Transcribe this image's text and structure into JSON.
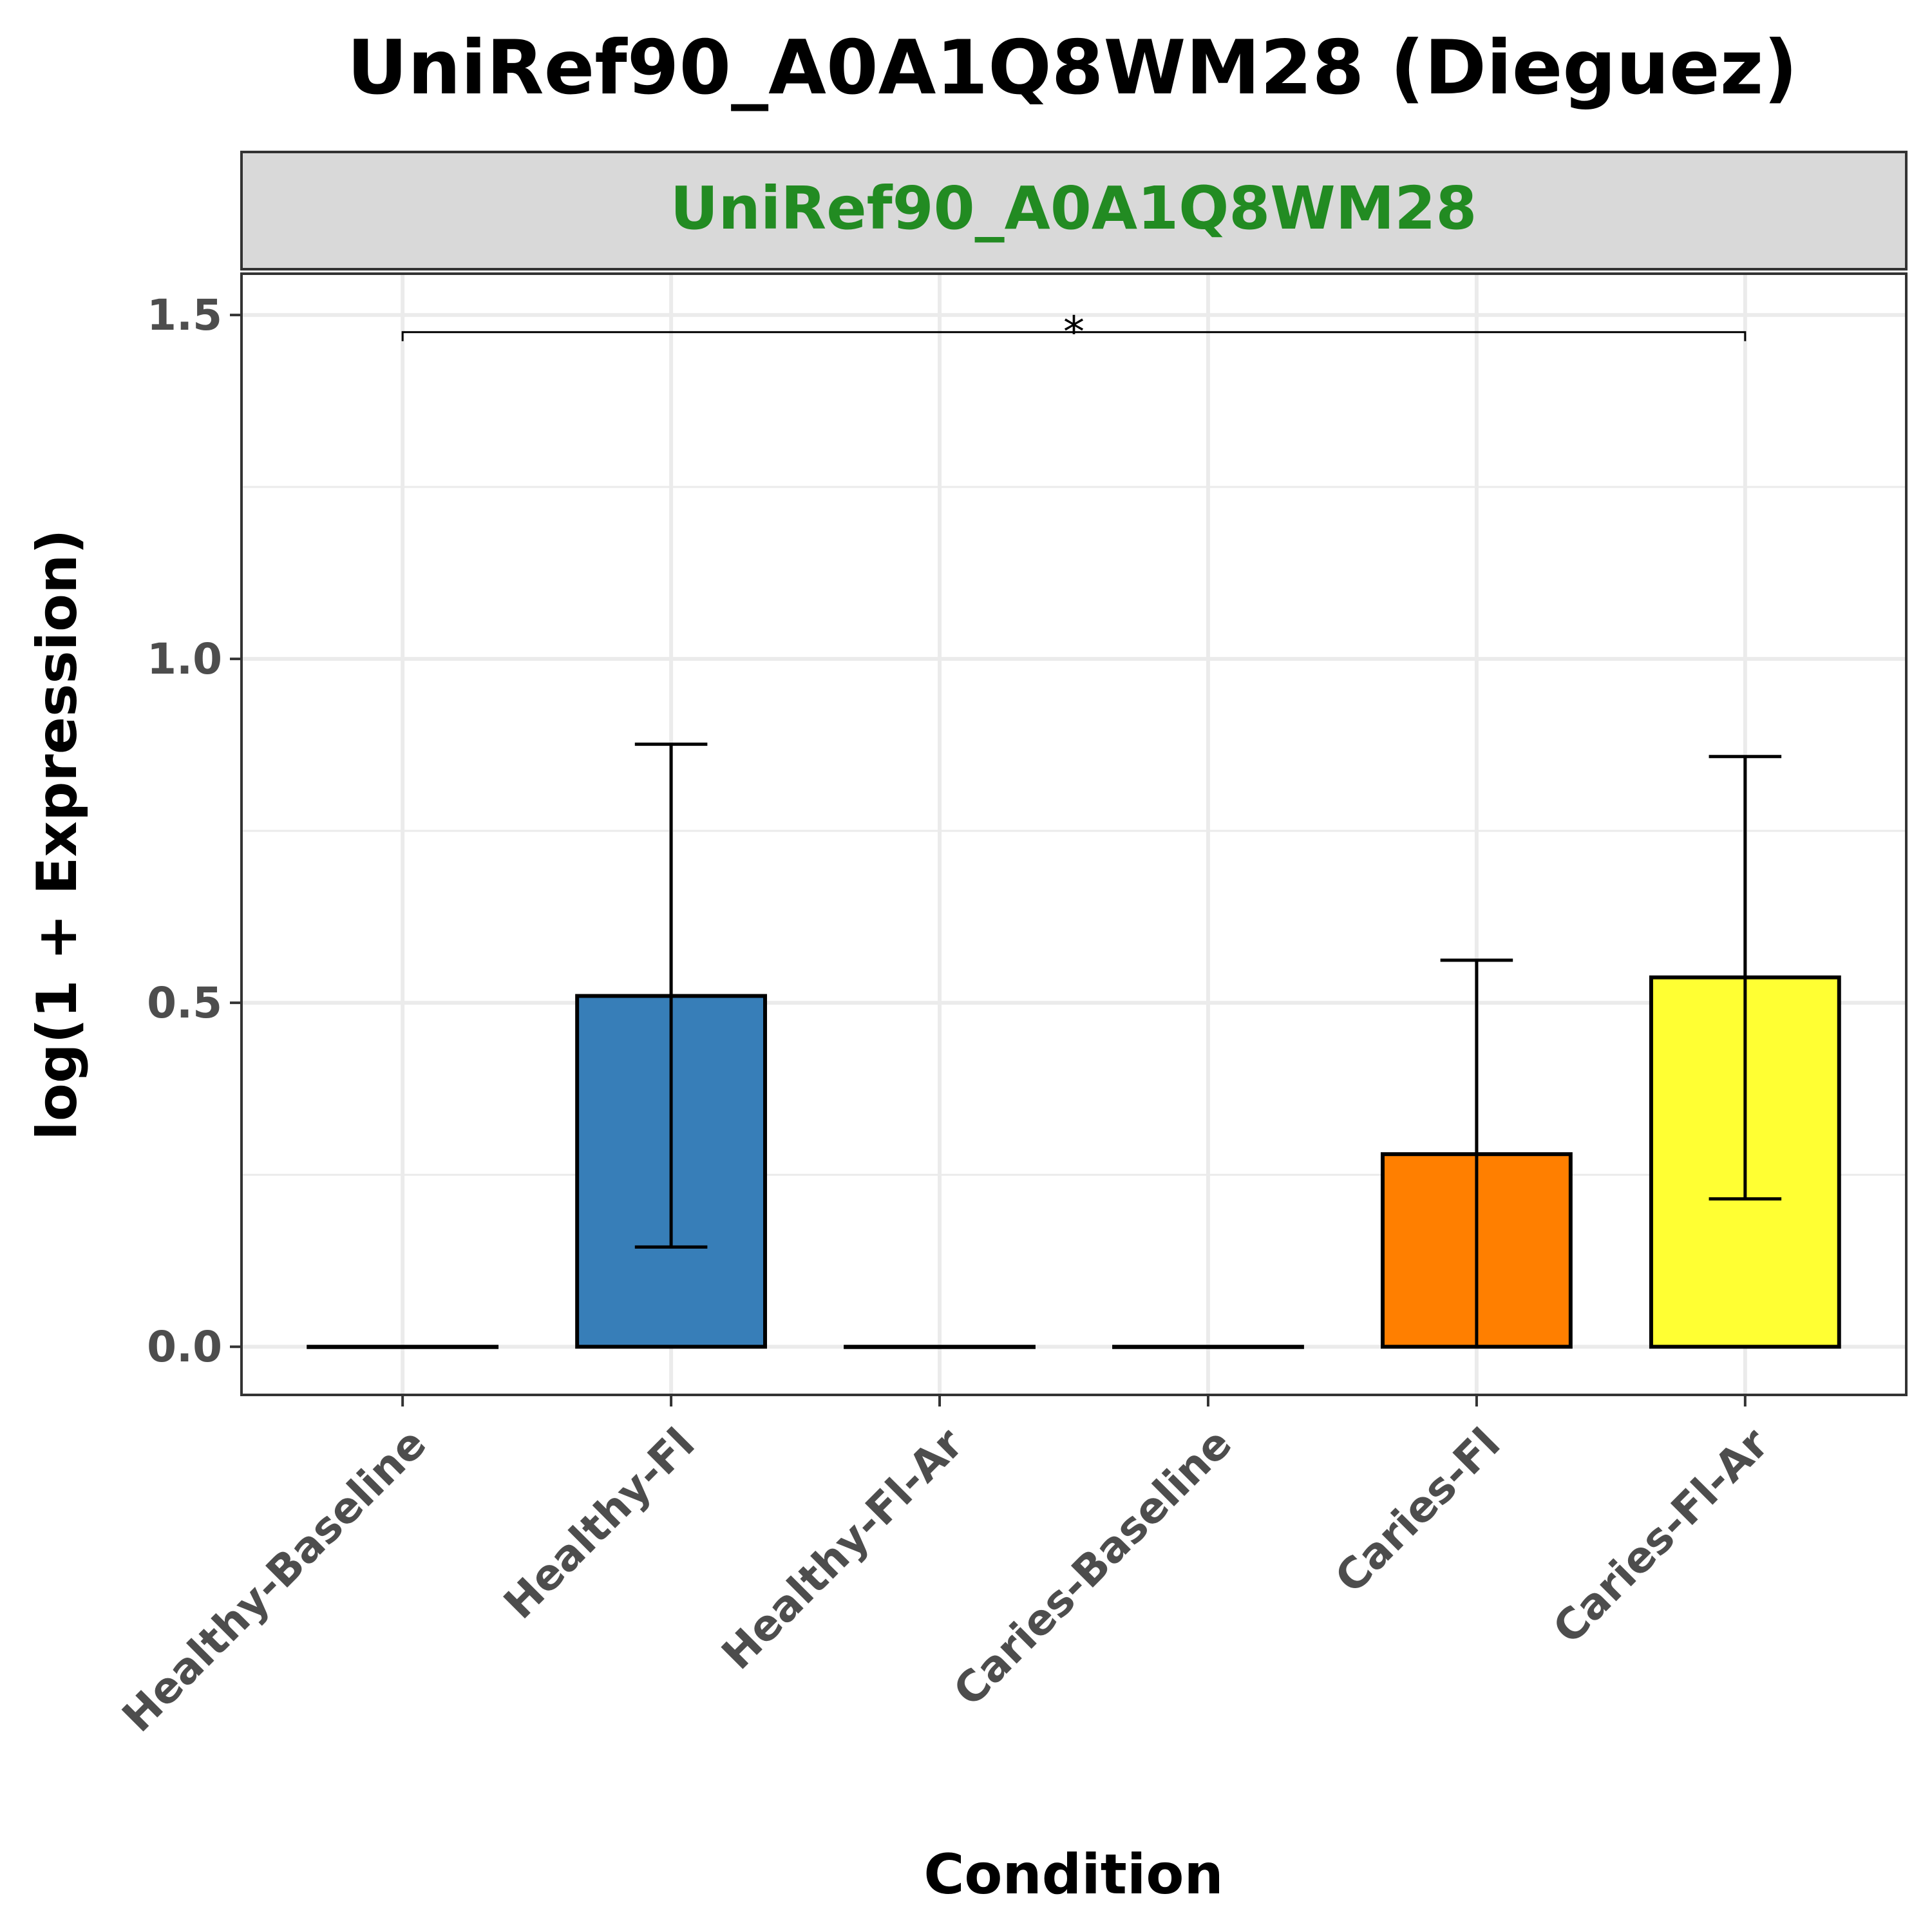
{
  "chart_data": {
    "type": "bar",
    "title": "UniRef90_A0A1Q8WM28 (Dieguez)",
    "facet_label": "UniRef90_A0A1Q8WM28",
    "facet_label_color": "#228b22",
    "xlabel": "Condition",
    "ylabel": "log(1 + Expression)",
    "ylim": [
      -0.07,
      1.56
    ],
    "yticks": [
      "0.0",
      "0.5",
      "1.0",
      "1.5"
    ],
    "grid": true,
    "categories": [
      "Healthy-Baseline",
      "Healthy-Fl",
      "Healthy-Fl-Ar",
      "Caries-Baseline",
      "Caries-Fl",
      "Caries-Fl-Ar"
    ],
    "values": [
      0.0,
      0.51,
      0.0,
      0.0,
      0.28,
      0.537
    ],
    "error_low": [
      null,
      0.145,
      null,
      null,
      0.0,
      0.215
    ],
    "error_high": [
      null,
      0.876,
      null,
      null,
      0.562,
      0.858
    ],
    "colors": [
      "#ffffff",
      "#377eb8",
      "#ffffff",
      "#ffffff",
      "#ff7f00",
      "#ffff33"
    ],
    "significance": [
      {
        "from": "Healthy-Baseline",
        "to": "Caries-Fl-Ar",
        "label": "*",
        "y": 1.475
      }
    ]
  }
}
